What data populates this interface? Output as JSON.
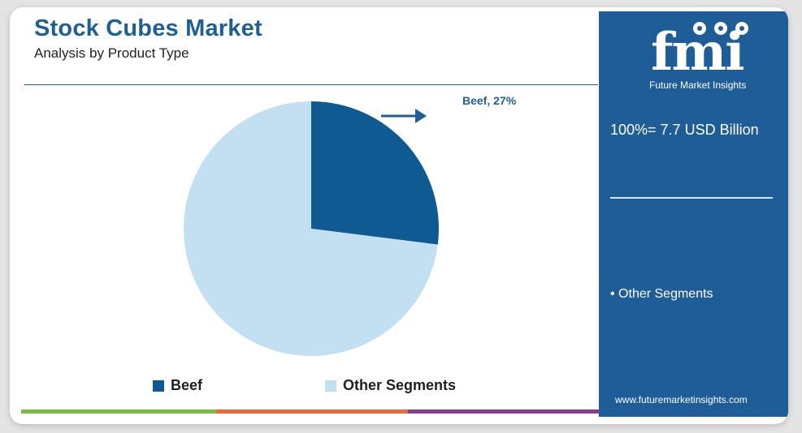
{
  "header": {
    "title": "Stock Cubes Market",
    "subtitle": "Analysis by Product Type"
  },
  "chart_data": {
    "type": "pie",
    "slices": [
      {
        "label": "Beef",
        "value": 27,
        "color": "#0f5a92"
      },
      {
        "label": "Other Segments",
        "value": 73,
        "color": "#c3e0f2"
      }
    ],
    "annotations": [
      "Beef, 27%"
    ],
    "legend": [
      "Beef",
      "Other Segments"
    ],
    "legend_position": "bottom"
  },
  "side_panel": {
    "logo_letters": "fmi",
    "logo_tagline": "Future Market Insights",
    "total": "100%= 7.7 USD Billion",
    "segment_label": "• Other Segments",
    "website": "www.futuremarketinsights.com"
  },
  "colors": {
    "brand_blue": "#1e5d98",
    "title_blue": "#1f5f94",
    "bar_green": "#7dbb46",
    "bar_orange": "#ea6a3c",
    "bar_purple": "#8a3e8c"
  }
}
